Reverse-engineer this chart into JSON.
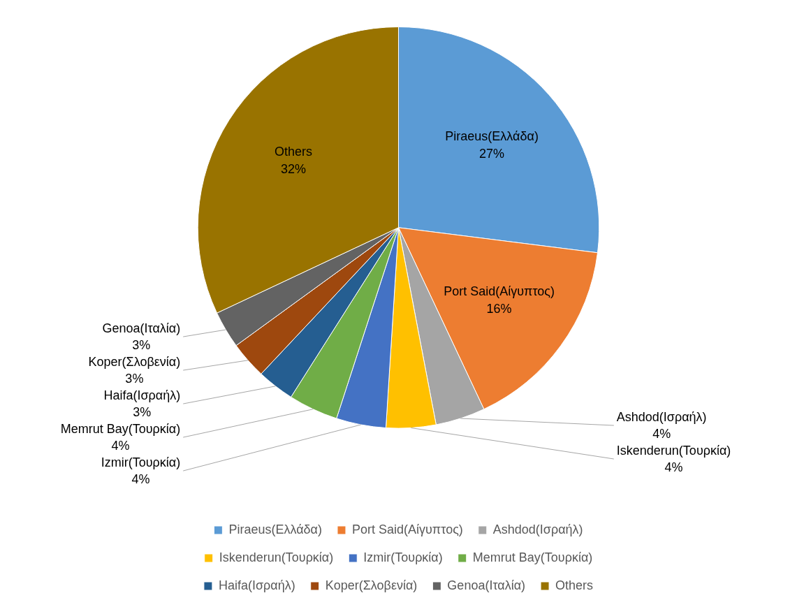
{
  "chart_data": {
    "type": "pie",
    "categories": [
      "Piraeus(Ελλάδα)",
      "Port Said(Αίγυπτος)",
      "Ashdod(Ισραήλ)",
      "Iskenderun(Τουρκία)",
      "Izmir(Τουρκία)",
      "Memrut Bay(Τουρκία)",
      "Haifa(Ισραήλ)",
      "Koper(Σλοβενία)",
      "Genoa(Ιταλία)",
      "Others"
    ],
    "values": [
      27,
      16,
      4,
      4,
      4,
      4,
      3,
      3,
      3,
      32
    ],
    "value_labels": [
      "27%",
      "16%",
      "4%",
      "4%",
      "4%",
      "4%",
      "3%",
      "3%",
      "3%",
      "32%"
    ],
    "colors": [
      "#5b9bd5",
      "#ed7d31",
      "#a5a5a5",
      "#ffc000",
      "#4472c4",
      "#70ad47",
      "#255e91",
      "#9e480e",
      "#636363",
      "#997300"
    ],
    "legend": "bottom"
  }
}
